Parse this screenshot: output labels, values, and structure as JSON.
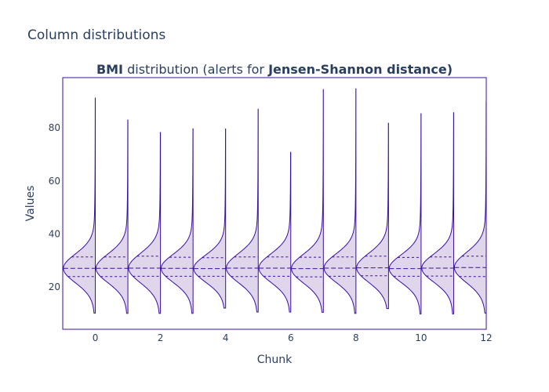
{
  "page_title": "Column distributions",
  "chart_data": {
    "type": "violin",
    "title_parts": [
      {
        "text": "BMI",
        "bold": true
      },
      {
        "text": " distribution (alerts for ",
        "bold": false
      },
      {
        "text": "Jensen-Shannon distance)",
        "bold": true
      }
    ],
    "xlabel": "Chunk",
    "ylabel": "Values",
    "xlim": [
      -1,
      12
    ],
    "ylim": [
      4,
      99
    ],
    "x_ticks": [
      0,
      2,
      4,
      6,
      8,
      10,
      12
    ],
    "y_ticks": [
      20,
      40,
      60,
      80
    ],
    "grid": false,
    "colors": {
      "line": "#3b0f9e",
      "fill": "#d9cfe8",
      "text": "#2a3f5f"
    },
    "violins": [
      {
        "chunk": 0,
        "min": 10.1,
        "max": 91.3,
        "q1": 23.9,
        "median": 27.0,
        "q3": 31.3
      },
      {
        "chunk": 1,
        "min": 10.0,
        "max": 83.0,
        "q1": 23.9,
        "median": 27.0,
        "q3": 31.3
      },
      {
        "chunk": 2,
        "min": 10.0,
        "max": 78.3,
        "q1": 24.0,
        "median": 27.1,
        "q3": 31.6
      },
      {
        "chunk": 3,
        "min": 10.0,
        "max": 79.7,
        "q1": 24.0,
        "median": 27.0,
        "q3": 31.2
      },
      {
        "chunk": 4,
        "min": 12.0,
        "max": 79.6,
        "q1": 24.0,
        "median": 26.9,
        "q3": 31.0
      },
      {
        "chunk": 5,
        "min": 10.5,
        "max": 87.1,
        "q1": 23.9,
        "median": 27.1,
        "q3": 31.3
      },
      {
        "chunk": 6,
        "min": 10.5,
        "max": 70.8,
        "q1": 24.0,
        "median": 27.1,
        "q3": 31.3
      },
      {
        "chunk": 7,
        "min": 10.4,
        "max": 94.5,
        "q1": 23.8,
        "median": 26.9,
        "q3": 31.2
      },
      {
        "chunk": 8,
        "min": 10.0,
        "max": 94.8,
        "q1": 24.0,
        "median": 27.1,
        "q3": 31.3
      },
      {
        "chunk": 9,
        "min": 11.8,
        "max": 81.8,
        "q1": 24.2,
        "median": 27.2,
        "q3": 31.6
      },
      {
        "chunk": 10,
        "min": 9.8,
        "max": 85.4,
        "q1": 24.0,
        "median": 26.9,
        "q3": 31.1
      },
      {
        "chunk": 11,
        "min": 9.8,
        "max": 85.8,
        "q1": 24.1,
        "median": 27.1,
        "q3": 31.3
      },
      {
        "chunk": 12,
        "min": 10.1,
        "max": 89.8,
        "q1": 23.9,
        "median": 27.3,
        "q3": 31.6
      }
    ]
  }
}
